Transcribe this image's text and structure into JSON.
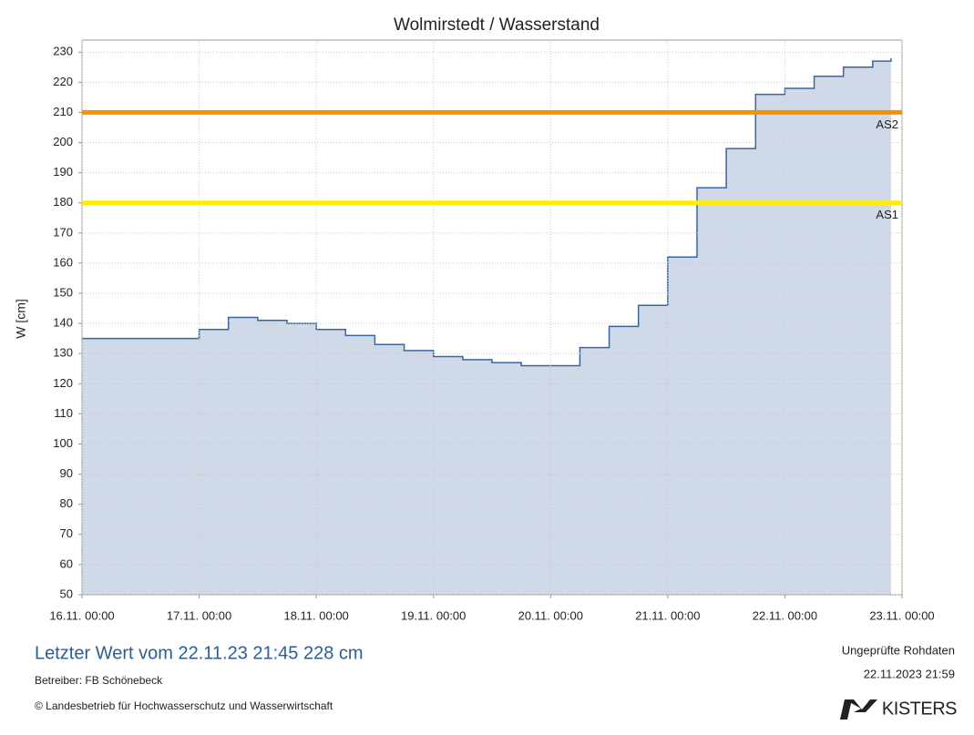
{
  "chart_data": {
    "type": "line",
    "title": "Wolmirstedt / Wasserstand",
    "y_label": "W [cm]",
    "x": [
      "16.11. 00:00",
      "16.11. 06:00",
      "16.11. 12:00",
      "16.11. 18:00",
      "17.11. 00:00",
      "17.11. 06:00",
      "17.11. 12:00",
      "17.11. 18:00",
      "18.11. 00:00",
      "18.11. 06:00",
      "18.11. 12:00",
      "18.11. 18:00",
      "19.11. 00:00",
      "19.11. 06:00",
      "19.11. 12:00",
      "19.11. 18:00",
      "20.11. 00:00",
      "20.11. 06:00",
      "20.11. 12:00",
      "20.11. 18:00",
      "21.11. 00:00",
      "21.11. 06:00",
      "21.11. 12:00",
      "21.11. 18:00",
      "22.11. 00:00",
      "22.11. 06:00",
      "22.11. 12:00",
      "22.11. 18:00",
      "22.11. 21:45"
    ],
    "series": [
      {
        "name": "Wasserstand",
        "color": "#3a66a0",
        "fill": "#cfd9e8",
        "values": [
          135,
          135,
          135,
          135,
          138,
          142,
          141,
          140,
          138,
          136,
          133,
          131,
          129,
          128,
          127,
          126,
          126,
          132,
          139,
          146,
          162,
          185,
          198,
          216,
          218,
          222,
          225,
          227,
          228
        ]
      }
    ],
    "xlim": [
      "16.11. 00:00",
      "23.11. 00:00"
    ],
    "xticks": [
      "16.11. 00:00",
      "17.11. 00:00",
      "18.11. 00:00",
      "19.11. 00:00",
      "20.11. 00:00",
      "21.11. 00:00",
      "22.11. 00:00",
      "23.11. 00:00"
    ],
    "ylim": [
      50,
      234
    ],
    "yticks": [
      50,
      60,
      70,
      80,
      90,
      100,
      110,
      120,
      130,
      140,
      150,
      160,
      170,
      180,
      190,
      200,
      210,
      220,
      230
    ],
    "grid": true,
    "thresholds": [
      {
        "label": "AS2",
        "value": 210,
        "color": "#f39200"
      },
      {
        "label": "AS1",
        "value": 180,
        "color": "#ffee00"
      }
    ],
    "footer": {
      "last_value": "Letzter Wert vom 22.11.23 21:45  228 cm",
      "operator": "Betreiber: FB Schönebeck",
      "copyright": "© Landesbetrieb für Hochwasserschutz und Wasserwirtschaft",
      "status": "Ungeprüfte Rohdaten",
      "timestamp": "22.11.2023 21:59",
      "logo": "KISTERS"
    }
  }
}
